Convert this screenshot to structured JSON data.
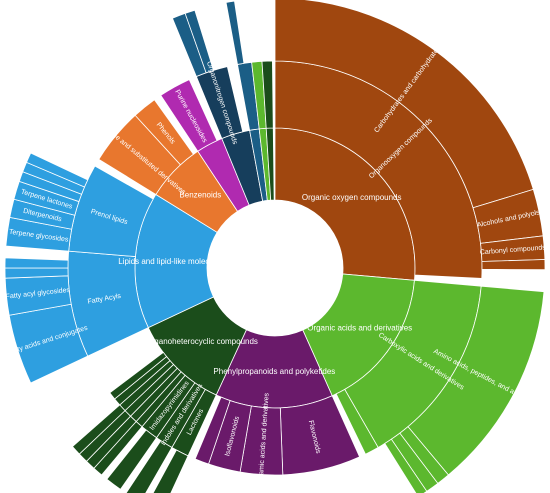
{
  "chart_data": {
    "type": "sunburst",
    "nodes": [
      {
        "name": "Organic oxygen compounds",
        "color": "#a0470f",
        "value": 26.4,
        "children": [
          {
            "name": "Organooxygen compounds",
            "color": "#a0470f",
            "value": 25.8,
            "children": [
              {
                "name": "Carbohydrates and carbohydrate conjugates",
                "color": "#a0470f",
                "value": 20.3
              },
              {
                "name": "Alcohols and polyols",
                "color": "#a0470f",
                "value": 2.8
              },
              {
                "name": "Carbonyl compounds",
                "color": "#a0470f",
                "value": 1.4
              },
              {
                "color": "#a0470f",
                "value": 0.6
              }
            ]
          }
        ]
      },
      {
        "name": "Organic acids and derivatives",
        "color": "#5cb82e",
        "value": 16.9,
        "children": [
          {
            "name": "Carboxylic acids and derivatives",
            "color": "#5cb82e",
            "value": 15.3,
            "children": [
              {
                "name": "Amino acids, peptides, and analogues",
                "color": "#5cb82e",
                "value": 12.5
              },
              {
                "color": "#5cb82e",
                "value": 0.8
              },
              {
                "color": "#5cb82e",
                "value": 0.8
              },
              {
                "color": "#5cb82e",
                "value": 0.6
              }
            ]
          },
          {
            "color": "#5cb82e",
            "value": 1.1
          }
        ]
      },
      {
        "name": "Phenylpropanoids and polyketides",
        "color": "#6a1a6a",
        "value": 13.6,
        "children": [
          {
            "name": "Flavonoids",
            "color": "#6a1a6a",
            "value": 6.1
          },
          {
            "name": "Cinnamic acids and derivatives",
            "color": "#6a1a6a",
            "value": 3.3
          },
          {
            "name": "Isoflavonoids",
            "color": "#6a1a6a",
            "value": 2.5
          },
          {
            "color": "#6a1a6a",
            "value": 1.1
          }
        ]
      },
      {
        "name": "Organoheterocyclic compounds",
        "color": "#1b4d1b",
        "value": 11.1,
        "children": [
          {
            "name": "Lactones",
            "color": "#1b4d1b",
            "value": 1.4,
            "children": [
              {
                "color": "#1b4d1b",
                "value": 1.0
              }
            ]
          },
          {
            "name": "Indoles and derivatives",
            "color": "#1b4d1b",
            "value": 1.4,
            "children": [
              {
                "color": "#1b4d1b",
                "value": 1.0
              }
            ]
          },
          {
            "name": "Imidazopyrimidines",
            "color": "#1b4d1b",
            "value": 1.4,
            "children": [
              {
                "color": "#1b4d1b",
                "value": 1.0
              }
            ]
          },
          {
            "color": "#1b4d1b",
            "value": 0.6,
            "children": [
              {
                "color": "#1b4d1b",
                "value": 0.6
              }
            ]
          },
          {
            "color": "#1b4d1b",
            "value": 0.6,
            "children": [
              {
                "color": "#1b4d1b",
                "value": 0.6
              }
            ]
          },
          {
            "color": "#1b4d1b",
            "value": 0.6,
            "children": [
              {
                "color": "#1b4d1b",
                "value": 0.6
              }
            ]
          },
          {
            "color": "#1b4d1b",
            "value": 0.6,
            "children": [
              {
                "color": "#1b4d1b",
                "value": 0.6
              }
            ]
          },
          {
            "color": "#1b4d1b",
            "value": 0.6
          },
          {
            "color": "#1b4d1b",
            "value": 0.6
          }
        ]
      },
      {
        "name": "Lipids and lipid-like molecules",
        "color": "#2e9fe0",
        "value": 15.8,
        "children": [
          {
            "name": "Fatty Acyls",
            "color": "#2e9fe0",
            "value": 8.3,
            "children": [
              {
                "name": "Fatty acids and conjugates",
                "color": "#2e9fe0",
                "value": 4.2
              },
              {
                "name": "Fatty acyl glycosides",
                "color": "#2e9fe0",
                "value": 2.2
              },
              {
                "color": "#2e9fe0",
                "value": 0.6
              },
              {
                "color": "#2e9fe0",
                "value": 0.6
              }
            ]
          },
          {
            "name": "Prenol lipids",
            "color": "#2e9fe0",
            "value": 6.9,
            "children": [
              {
                "name": "Terpene glycosides",
                "color": "#2e9fe0",
                "value": 1.7
              },
              {
                "name": "Diterpenoids",
                "color": "#2e9fe0",
                "value": 1.1
              },
              {
                "name": "Terpene lactones",
                "color": "#2e9fe0",
                "value": 1.1
              },
              {
                "color": "#2e9fe0",
                "value": 0.6
              },
              {
                "color": "#2e9fe0",
                "value": 0.6
              },
              {
                "color": "#2e9fe0",
                "value": 0.6
              }
            ]
          }
        ]
      },
      {
        "name": "Benzenoids",
        "color": "#e8772e",
        "value": 6.9,
        "children": [
          {
            "name": "Benzene and substituted derivatives",
            "color": "#e8772e",
            "value": 4.4
          },
          {
            "name": "Phenols",
            "color": "#e8772e",
            "value": 1.9
          }
        ]
      },
      {
        "color": "#b02ab0",
        "value": 3.1,
        "children": [
          {
            "name": "Purine nucleosides",
            "color": "#b02ab0",
            "value": 2.5
          }
        ]
      },
      {
        "color": "#163e5c",
        "value": 3.3,
        "children": [
          {
            "name": "Organonitrogen compounds",
            "color": "#163e5c",
            "value": 2.5,
            "children": [
              {
                "color": "#1b5e86",
                "value": 0.8
              },
              {
                "color": "#1b5e86",
                "value": 0.6
              }
            ]
          }
        ]
      },
      {
        "color": "#1b5e86",
        "value": 1.1,
        "children": [
          {
            "color": "#1b5e86",
            "value": 1.1,
            "children": [
              {
                "color": "#1b5e86",
                "value": 0.5
              }
            ]
          }
        ]
      },
      {
        "color": "#5cb82e",
        "value": 0.8,
        "children": [
          {
            "color": "#5cb82e",
            "value": 0.8
          }
        ]
      },
      {
        "color": "#1b4d1b",
        "value": 0.8,
        "children": [
          {
            "color": "#1b4d1b",
            "value": 0.8
          }
        ]
      }
    ]
  }
}
